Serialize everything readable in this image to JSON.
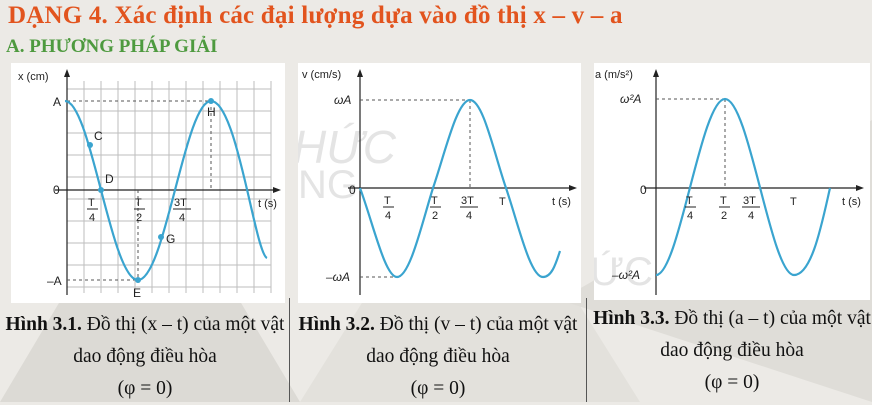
{
  "heading": "DẠNG 4. Xác định các đại lượng dựa vào đồ thị x – v – a",
  "subheading": "A. PHƯƠNG PHÁP GIẢI",
  "colors": {
    "heading": "#e2541e",
    "subheading": "#4e9a3f",
    "curve": "#3aa4cf",
    "grid": "#bdbdbd"
  },
  "watermark": [
    "HỨC",
    "NG",
    "ỨC"
  ],
  "figures": [
    {
      "axis_label_y": "x (cm)",
      "axis_label_x": "t (s)",
      "y_top": "A",
      "y_zero": "0",
      "y_bottom": "–A",
      "ticks": [
        {
          "num": "T",
          "den": "4"
        },
        {
          "num": "T",
          "den": "2"
        },
        {
          "num": "3T",
          "den": "4"
        }
      ],
      "points": [
        "C",
        "D",
        "E",
        "G",
        "H"
      ],
      "caption_bold": "Hình 3.1.",
      "caption_text": " Đồ thị (x – t) của một vật dao động điều hòa",
      "caption_phi": "(φ = 0)"
    },
    {
      "axis_label_y": "v (cm/s)",
      "axis_label_x": "t (s)",
      "y_top": "ωA",
      "y_zero": "0",
      "y_bottom": "–ωA",
      "ticks": [
        {
          "num": "T",
          "den": "4"
        },
        {
          "num": "T",
          "den": "2"
        },
        {
          "num": "3T",
          "den": "4"
        }
      ],
      "tick_T": "T",
      "caption_bold": "Hình 3.2.",
      "caption_text": " Đồ thị (v – t) của một vật dao động điều hòa",
      "caption_phi": "(φ = 0)"
    },
    {
      "axis_label_y": "a (m/s²)",
      "axis_label_x": "t (s)",
      "y_top": "ω²A",
      "y_zero": "0",
      "y_bottom": "–ω²A",
      "ticks": [
        {
          "num": "T",
          "den": "4"
        },
        {
          "num": "T",
          "den": "2"
        },
        {
          "num": "3T",
          "den": "4"
        }
      ],
      "tick_T": "T",
      "caption_bold": "Hình 3.3.",
      "caption_text": " Đồ thị (a – t) của một vật dao động điều hòa",
      "caption_phi": "(φ = 0)"
    }
  ]
}
